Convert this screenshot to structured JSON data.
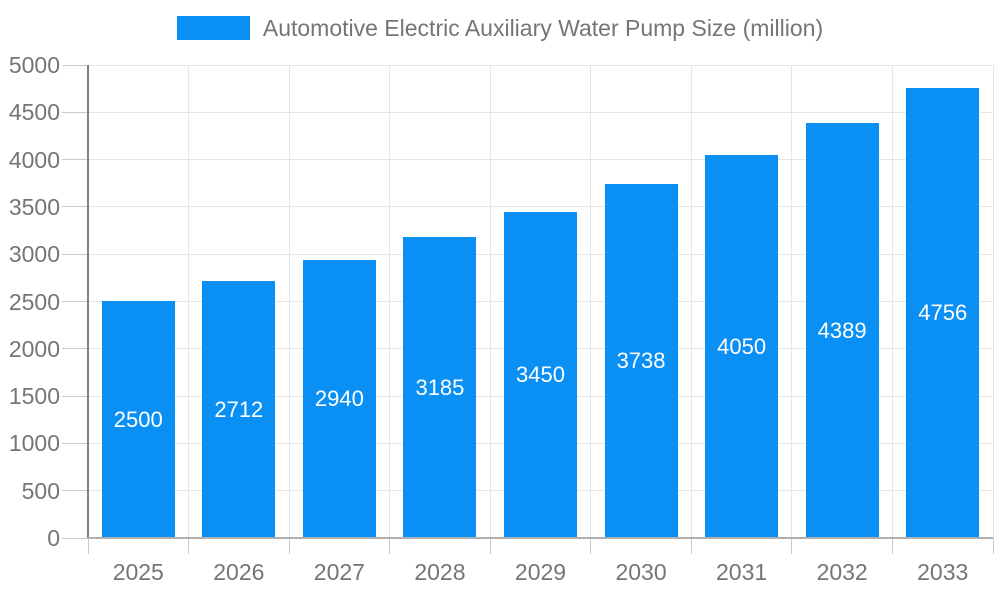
{
  "chart_data": {
    "type": "bar",
    "title": "Automotive Electric Auxiliary Water Pump Size (million)",
    "legend_position": "top",
    "categories": [
      "2025",
      "2026",
      "2027",
      "2028",
      "2029",
      "2030",
      "2031",
      "2032",
      "2033"
    ],
    "values": [
      2500,
      2712,
      2940,
      3185,
      3450,
      3738,
      4050,
      4389,
      4756
    ],
    "bar_labels": [
      "2500",
      "2712",
      "2940",
      "3185",
      "3450",
      "3738",
      "4050",
      "4389",
      "4756"
    ],
    "xlabel": "",
    "ylabel": "",
    "ylim": [
      0,
      5000
    ],
    "y_ticks": [
      0,
      500,
      1000,
      1500,
      2000,
      2500,
      3000,
      3500,
      4000,
      4500,
      5000
    ],
    "grid": true,
    "colors": {
      "bar": "#0a90f5",
      "bar_label": "#ffffff",
      "axis_text": "#757575",
      "grid_line": "#e6e6e6",
      "y_axis_line": "#808080",
      "x_baseline": "#b0b0b0",
      "tick": "#c9c9c9",
      "background": "#ffffff"
    }
  }
}
